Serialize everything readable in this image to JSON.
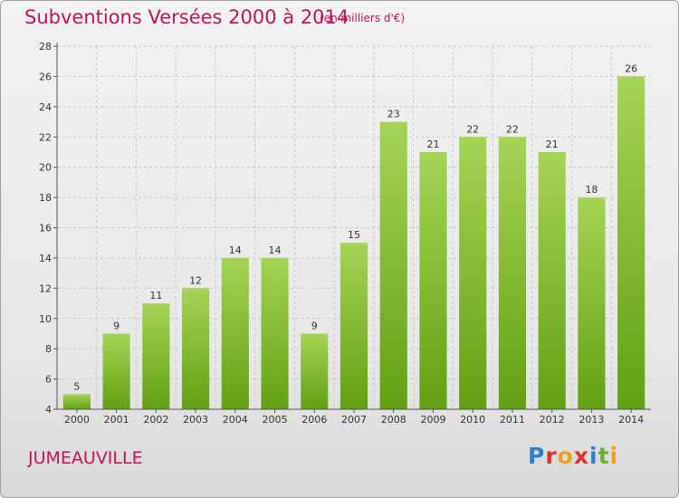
{
  "title": "Subventions Versées 2000 à 2014",
  "unit_note": "(en milliers d'€)",
  "place_name": "JUMEAUVILLE",
  "logo": {
    "text": "Proxiti",
    "letters": [
      {
        "ch": "P",
        "color": "#2f7fd0"
      },
      {
        "ch": "r",
        "color": "#e03030"
      },
      {
        "ch": "o",
        "color": "#f0a020"
      },
      {
        "ch": "x",
        "color": "#e03030"
      },
      {
        "ch": "i",
        "color": "#2f7fd0"
      },
      {
        "ch": "t",
        "color": "#6ab030"
      },
      {
        "ch": "i",
        "color": "#f0a020"
      }
    ]
  },
  "colors": {
    "bar_light": "#a6d456",
    "bar_dark": "#62a012",
    "title": "#c0145a",
    "grid": "#c8c8c8",
    "axis": "#555555"
  },
  "chart_data": {
    "type": "bar",
    "categories": [
      "2000",
      "2001",
      "2002",
      "2003",
      "2004",
      "2005",
      "2006",
      "2007",
      "2008",
      "2009",
      "2010",
      "2011",
      "2012",
      "2013",
      "2014"
    ],
    "values": [
      5,
      9,
      11,
      12,
      14,
      14,
      9,
      15,
      23,
      21,
      22,
      22,
      21,
      18,
      26
    ],
    "ylim": [
      4,
      28
    ],
    "yticks": [
      4,
      6,
      8,
      10,
      12,
      14,
      16,
      18,
      20,
      22,
      24,
      26,
      28
    ],
    "grid": "horizontal dashed",
    "data_labels": true
  }
}
